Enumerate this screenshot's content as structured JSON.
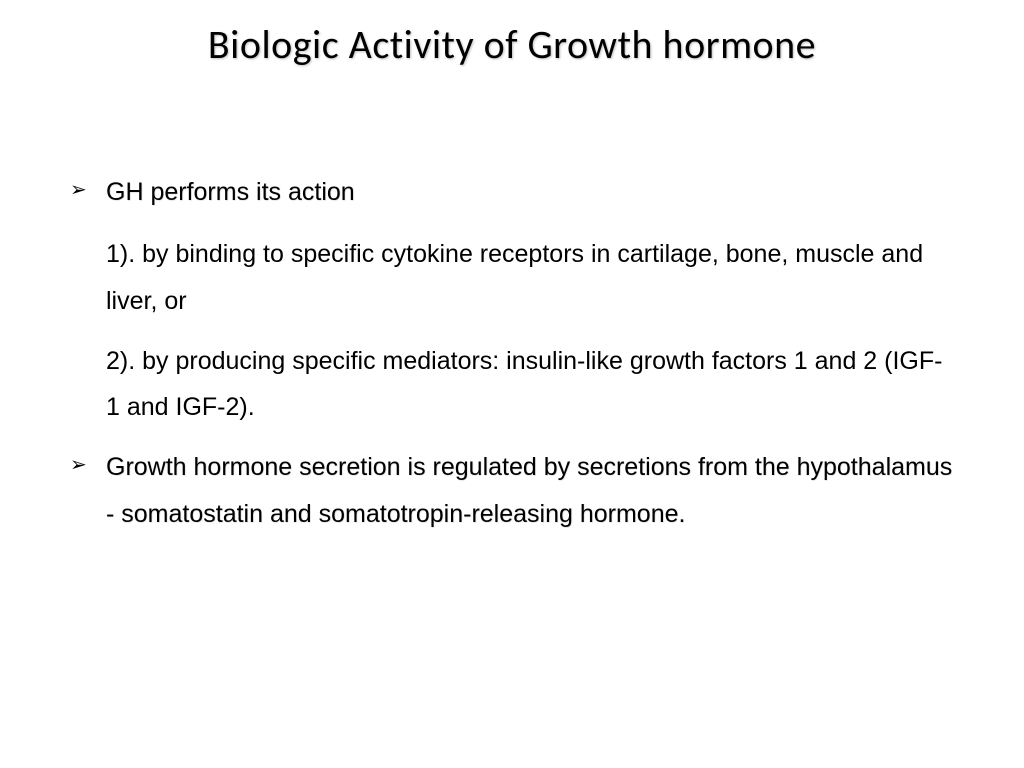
{
  "title": "Biologic Activity of Growth hormone",
  "bullets": [
    {
      "marker": "➢",
      "text": "GH performs its action",
      "subitems": [
        "1). by binding to specific cytokine receptors in cartilage, bone, muscle and liver, or",
        "2). by producing specific mediators: insulin-like growth factors 1 and 2 (IGF-1 and IGF-2)."
      ]
    },
    {
      "marker": "➢",
      "text": "Growth hormone secretion is regulated by secretions from the hypothalamus - somatostatin and somatotropin-releasing hormone.",
      "subitems": []
    }
  ],
  "styling": {
    "background_color": "#ffffff",
    "title_color": "#000000",
    "title_fontsize": 40,
    "body_fontsize": 25,
    "body_color": "#000000",
    "bullet_marker_color": "#000000",
    "title_font": "Calibri",
    "body_font": "Arial",
    "line_height": 1.85
  }
}
